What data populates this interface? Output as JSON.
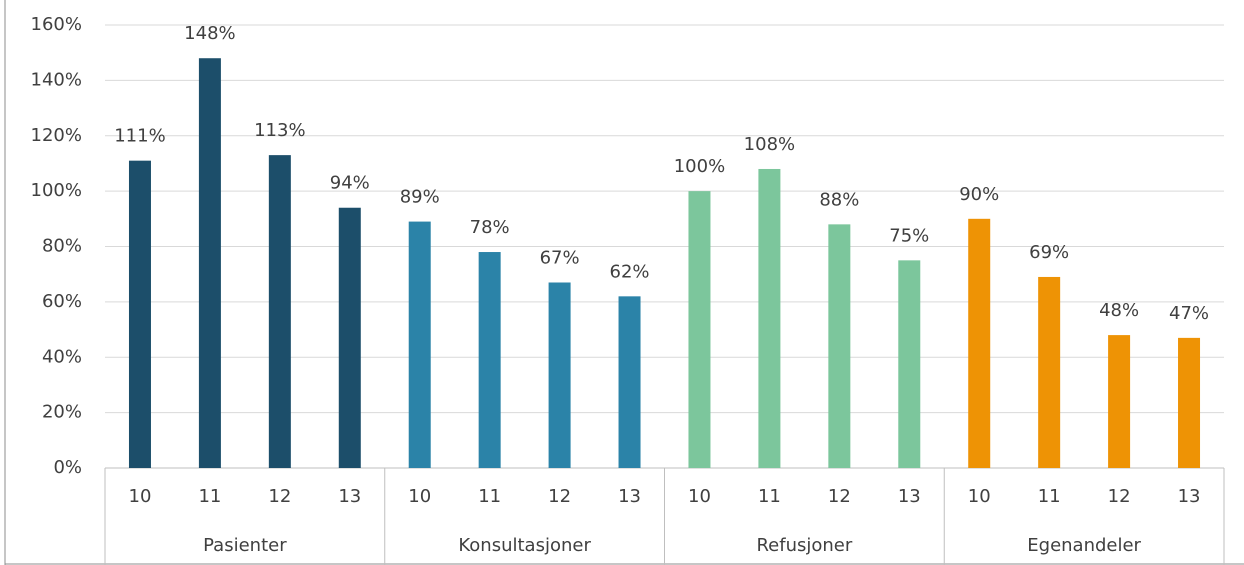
{
  "chart_data": {
    "type": "bar",
    "categories": [
      "10",
      "11",
      "12",
      "13"
    ],
    "series": [
      {
        "name": "Pasienter",
        "color": "#1c4e6a",
        "values": [
          111,
          148,
          113,
          94
        ],
        "value_labels": [
          "111%",
          "148%",
          "113%",
          "94%"
        ]
      },
      {
        "name": "Konsultasjoner",
        "color": "#2b83a8",
        "values": [
          89,
          78,
          67,
          62
        ],
        "value_labels": [
          "89%",
          "78%",
          "67%",
          "62%"
        ]
      },
      {
        "name": "Refusjoner",
        "color": "#7cc69c",
        "values": [
          100,
          108,
          88,
          75
        ],
        "value_labels": [
          "100%",
          "108%",
          "88%",
          "75%"
        ]
      },
      {
        "name": "Egenandeler",
        "color": "#ee9305",
        "values": [
          90,
          69,
          48,
          47
        ],
        "value_labels": [
          "90%",
          "69%",
          "48%",
          "47%"
        ]
      }
    ],
    "ylim": [
      0,
      160
    ],
    "yticks": [
      {
        "value": 0,
        "label": "0%"
      },
      {
        "value": 20,
        "label": "20%"
      },
      {
        "value": 40,
        "label": "40%"
      },
      {
        "value": 60,
        "label": "60%"
      },
      {
        "value": 80,
        "label": "80%"
      },
      {
        "value": 100,
        "label": "100%"
      },
      {
        "value": 120,
        "label": "120%"
      },
      {
        "value": 140,
        "label": "140%"
      },
      {
        "value": 160,
        "label": "160%"
      }
    ],
    "grid": true
  }
}
